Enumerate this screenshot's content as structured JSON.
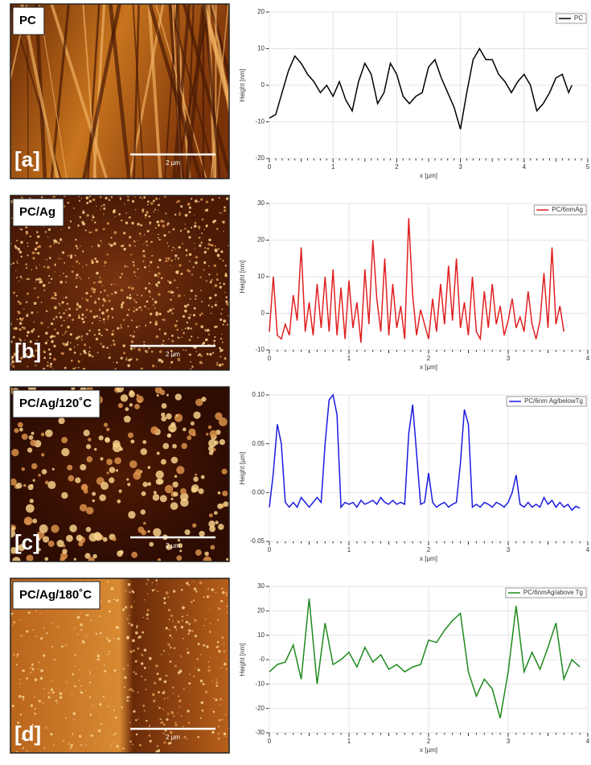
{
  "images": [
    {
      "label": "PC",
      "tag": "[a]",
      "scale": "2 µm"
    },
    {
      "label": "PC/Ag",
      "tag": "[b]",
      "scale": "2 µm"
    },
    {
      "label": "PC/Ag/120˚C",
      "tag": "[c]",
      "scale": "2 µm"
    },
    {
      "label": "PC/Ag/180˚C",
      "tag": "[d]",
      "scale": "2 µm"
    }
  ],
  "chart_data": [
    {
      "type": "line",
      "x_label": "x [µm]",
      "y_label": "Height [nm]",
      "xlim": [
        0,
        5
      ],
      "xticks": [
        0,
        1,
        2,
        3,
        4,
        5
      ],
      "ylim": [
        -20,
        20
      ],
      "yticks": [
        -20,
        -10,
        0,
        10,
        20
      ],
      "grid": true,
      "legend": "top-right",
      "x": [
        0,
        0.1,
        0.2,
        0.3,
        0.4,
        0.5,
        0.6,
        0.7,
        0.8,
        0.9,
        1.0,
        1.1,
        1.2,
        1.3,
        1.4,
        1.5,
        1.6,
        1.7,
        1.8,
        1.9,
        2.0,
        2.1,
        2.2,
        2.3,
        2.4,
        2.5,
        2.6,
        2.7,
        2.8,
        2.9,
        3.0,
        3.1,
        3.2,
        3.3,
        3.4,
        3.5,
        3.6,
        3.7,
        3.8,
        3.9,
        4.0,
        4.1,
        4.2,
        4.3,
        4.4,
        4.5,
        4.6,
        4.7,
        4.75
      ],
      "series": [
        {
          "name": "PC",
          "color": "#000000",
          "values": [
            -9,
            -8,
            -2,
            4,
            8,
            6,
            3,
            1,
            -2,
            0,
            -3,
            1,
            -4,
            -7,
            1,
            6,
            3,
            -5,
            -2,
            6,
            3,
            -3,
            -5,
            -3,
            -2,
            5,
            7,
            2,
            -2,
            -6,
            -12,
            -2,
            7,
            10,
            7,
            7,
            3,
            1,
            -2,
            1,
            3,
            0,
            -7,
            -5,
            -2,
            2,
            3,
            -2,
            0
          ]
        }
      ]
    },
    {
      "type": "line",
      "x_label": "x [µm]",
      "y_label": "Height [nm]",
      "xlim": [
        0,
        4
      ],
      "xticks": [
        0,
        1,
        2,
        3,
        4
      ],
      "ylim": [
        -10,
        30
      ],
      "yticks": [
        -10,
        0,
        10,
        20,
        30
      ],
      "grid": true,
      "legend": "top-right",
      "x": [
        0,
        0.05,
        0.1,
        0.15,
        0.2,
        0.25,
        0.3,
        0.35,
        0.4,
        0.45,
        0.5,
        0.55,
        0.6,
        0.65,
        0.7,
        0.75,
        0.8,
        0.85,
        0.9,
        0.95,
        1.0,
        1.05,
        1.1,
        1.15,
        1.2,
        1.25,
        1.3,
        1.35,
        1.4,
        1.45,
        1.5,
        1.55,
        1.6,
        1.65,
        1.7,
        1.75,
        1.8,
        1.85,
        1.9,
        1.95,
        2.0,
        2.05,
        2.1,
        2.15,
        2.2,
        2.25,
        2.3,
        2.35,
        2.4,
        2.45,
        2.5,
        2.55,
        2.6,
        2.65,
        2.7,
        2.75,
        2.8,
        2.85,
        2.9,
        2.95,
        3.0,
        3.05,
        3.1,
        3.15,
        3.2,
        3.25,
        3.3,
        3.35,
        3.4,
        3.45,
        3.5,
        3.55,
        3.6,
        3.65,
        3.7
      ],
      "series": [
        {
          "name": "PC/6nmAg",
          "color": "#e02020",
          "values": [
            -5,
            10,
            -6,
            -7,
            -3,
            -6,
            5,
            -2,
            18,
            -5,
            3,
            -6,
            8,
            -4,
            10,
            -5,
            12,
            -6,
            7,
            -7,
            9,
            -4,
            3,
            -8,
            12,
            -3,
            20,
            4,
            -5,
            15,
            -6,
            8,
            -4,
            2,
            -7,
            26,
            5,
            -6,
            1,
            -3,
            -7,
            4,
            -5,
            8,
            -3,
            13,
            -2,
            15,
            -4,
            3,
            -6,
            10,
            -5,
            -7,
            6,
            -4,
            8,
            -3,
            2,
            -6,
            -2,
            4,
            -4,
            -1,
            -5,
            6,
            -3,
            -7,
            -2,
            11,
            -4,
            18,
            -3,
            2,
            -5
          ]
        }
      ]
    },
    {
      "type": "line",
      "x_label": "x [µm]",
      "y_label": "Height [µm]",
      "xlim": [
        0,
        4
      ],
      "xticks": [
        0,
        1,
        2,
        3,
        4
      ],
      "ylim": [
        -0.05,
        0.1
      ],
      "yticks": [
        -0.05,
        {
          "value": 0,
          "label": "0.00"
        },
        0.05,
        {
          "value": 0.1,
          "label": "0.10"
        }
      ],
      "grid": true,
      "legend": "top-right",
      "x": [
        0,
        0.05,
        0.1,
        0.15,
        0.2,
        0.25,
        0.3,
        0.35,
        0.4,
        0.45,
        0.5,
        0.55,
        0.6,
        0.65,
        0.7,
        0.75,
        0.8,
        0.85,
        0.9,
        0.95,
        1.0,
        1.05,
        1.1,
        1.15,
        1.2,
        1.25,
        1.3,
        1.35,
        1.4,
        1.45,
        1.5,
        1.55,
        1.6,
        1.65,
        1.7,
        1.75,
        1.8,
        1.85,
        1.9,
        1.95,
        2.0,
        2.05,
        2.1,
        2.15,
        2.2,
        2.25,
        2.3,
        2.35,
        2.4,
        2.45,
        2.5,
        2.55,
        2.6,
        2.65,
        2.7,
        2.75,
        2.8,
        2.85,
        2.9,
        2.95,
        3.0,
        3.05,
        3.1,
        3.15,
        3.2,
        3.25,
        3.3,
        3.35,
        3.4,
        3.45,
        3.5,
        3.55,
        3.6,
        3.65,
        3.7,
        3.75,
        3.8,
        3.85,
        3.9
      ],
      "series": [
        {
          "name": "PC/6nm Ag/belowTg",
          "color": "#1a1ae0",
          "values": [
            -0.015,
            0.02,
            0.07,
            0.05,
            -0.01,
            -0.015,
            -0.01,
            -0.015,
            -0.005,
            -0.01,
            -0.015,
            -0.01,
            -0.005,
            -0.01,
            0.05,
            0.095,
            0.1,
            0.08,
            -0.015,
            -0.01,
            -0.012,
            -0.01,
            -0.015,
            -0.008,
            -0.012,
            -0.01,
            -0.008,
            -0.012,
            -0.005,
            -0.01,
            -0.012,
            -0.008,
            -0.012,
            -0.01,
            -0.012,
            0.06,
            0.09,
            0.04,
            -0.012,
            -0.01,
            0.02,
            -0.01,
            -0.015,
            -0.012,
            -0.01,
            -0.015,
            -0.012,
            -0.01,
            0.03,
            0.085,
            0.07,
            -0.015,
            -0.012,
            -0.015,
            -0.01,
            -0.012,
            -0.015,
            -0.01,
            -0.012,
            -0.015,
            -0.01,
            0.0,
            0.018,
            -0.012,
            -0.015,
            -0.01,
            -0.015,
            -0.012,
            -0.015,
            -0.005,
            -0.012,
            -0.008,
            -0.015,
            -0.01,
            -0.015,
            -0.012,
            -0.018,
            -0.014,
            -0.016
          ]
        }
      ]
    },
    {
      "type": "line",
      "x_label": "x [µm]",
      "y_label": "Height [nm]",
      "xlim": [
        0,
        4
      ],
      "xticks": [
        0,
        1,
        2,
        3,
        4
      ],
      "ylim": [
        -30,
        30
      ],
      "yticks": [
        -30,
        -20,
        -10,
        {
          "value": 0,
          "label": "-0"
        },
        10,
        20,
        30
      ],
      "grid": true,
      "legend": "top-right",
      "x": [
        0,
        0.1,
        0.2,
        0.3,
        0.4,
        0.5,
        0.6,
        0.7,
        0.8,
        0.9,
        1.0,
        1.1,
        1.2,
        1.3,
        1.4,
        1.5,
        1.6,
        1.7,
        1.8,
        1.9,
        2.0,
        2.1,
        2.2,
        2.3,
        2.4,
        2.5,
        2.6,
        2.7,
        2.8,
        2.9,
        3.0,
        3.1,
        3.2,
        3.3,
        3.4,
        3.5,
        3.6,
        3.7,
        3.8,
        3.9
      ],
      "series": [
        {
          "name": "PC/6nmAg/above Tg",
          "color": "#1e8a1e",
          "values": [
            -5,
            -2,
            -1,
            6,
            -8,
            25,
            -10,
            15,
            -2,
            0,
            3,
            -3,
            5,
            -1,
            2,
            -4,
            -2,
            -5,
            -3,
            -2,
            8,
            7,
            12,
            16,
            19,
            -5,
            -15,
            -8,
            -12,
            -24,
            -5,
            22,
            -5,
            3,
            -4,
            5,
            15,
            -8,
            0,
            -3
          ]
        }
      ]
    }
  ]
}
